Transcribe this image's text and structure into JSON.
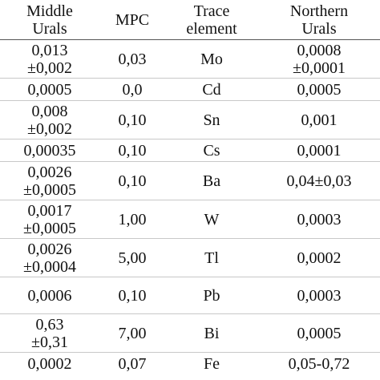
{
  "table": {
    "headers": [
      "Middle\nUrals",
      "MPC",
      "Trace\nelement",
      "Northern\nUrals"
    ],
    "rows": [
      [
        "0,013\n±0,002",
        "0,03",
        "Mo",
        "0,0008\n±0,0001"
      ],
      [
        "0,0005",
        "0,0",
        "Cd",
        "0,0005"
      ],
      [
        "0,008\n±0,002",
        "0,10",
        "Sn",
        "0,001"
      ],
      [
        "0,00035",
        "0,10",
        "Cs",
        "0,0001"
      ],
      [
        "0,0026\n±0,0005",
        "0,10",
        "Ba",
        "0,04±0,03"
      ],
      [
        "0,0017\n±0,0005",
        "1,00",
        "W",
        "0,0003"
      ],
      [
        "0,0026\n±0,0004",
        "5,00",
        "Tl",
        "0,0002"
      ],
      [
        "0,0006",
        "0,10",
        "Pb",
        "0,0003"
      ],
      [
        "0,63\n±0,31",
        "7,00",
        "Bi",
        "0,0005"
      ],
      [
        "0,0002",
        "0,07",
        "Fe",
        "0,05-0,72"
      ]
    ]
  }
}
